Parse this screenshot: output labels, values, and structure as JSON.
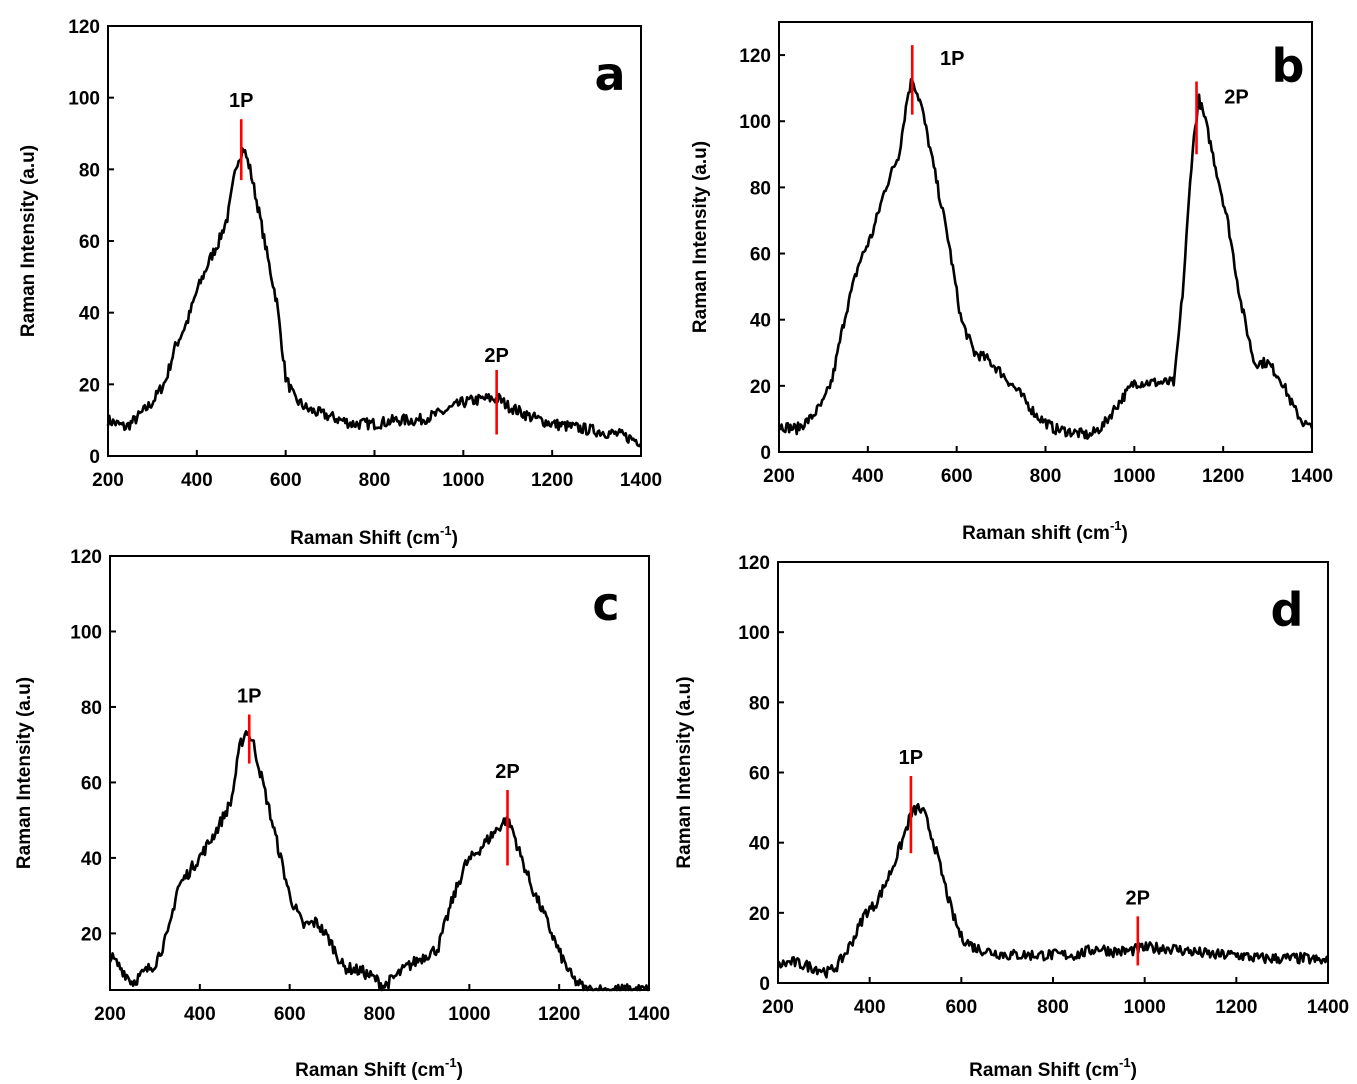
{
  "chart_data": [
    {
      "panel": "a",
      "type": "line",
      "xlabel": "Raman Shift (cm",
      "xlabel_sup": "-1",
      "xlabel_close": ")",
      "ylabel": "Raman Intensity (a.u)",
      "xlim": [
        200,
        1400
      ],
      "ylim": [
        0,
        120
      ],
      "xticks": [
        200,
        400,
        600,
        800,
        1000,
        1200,
        1400
      ],
      "yticks": [
        0,
        20,
        40,
        60,
        80,
        100,
        120
      ],
      "peaks": [
        {
          "label": "1P",
          "x": 500,
          "y_low": 77,
          "y_high": 94
        },
        {
          "label": "2P",
          "x": 1075,
          "y_low": 6,
          "y_high": 24
        }
      ],
      "series": [
        {
          "x": [
            200,
            240,
            260,
            300,
            330,
            350,
            380,
            400,
            430,
            450,
            470,
            490,
            505,
            520,
            540,
            560,
            580,
            600,
            620,
            650,
            700,
            750,
            800,
            850,
            900,
            950,
            1000,
            1050,
            1080,
            1100,
            1150,
            1200,
            1250,
            1300,
            1350,
            1400
          ],
          "y": [
            10,
            8,
            10,
            15,
            21,
            30,
            38,
            46,
            55,
            60,
            67,
            82,
            86,
            80,
            68,
            55,
            43,
            22,
            16,
            13,
            11,
            9,
            9,
            10,
            10,
            12,
            15,
            16,
            16,
            14,
            11,
            9,
            8,
            7,
            6,
            4
          ]
        }
      ]
    },
    {
      "panel": "b",
      "type": "line",
      "xlabel": "Raman shift (cm",
      "xlabel_sup": "-1",
      "xlabel_close": ")",
      "ylabel": "Raman Intensity (a.u)",
      "xlim": [
        200,
        1400
      ],
      "ylim": [
        0,
        130
      ],
      "xticks": [
        200,
        400,
        600,
        800,
        1000,
        1200,
        1400
      ],
      "yticks": [
        0,
        20,
        40,
        60,
        80,
        100,
        120
      ],
      "peaks": [
        {
          "label": "1P",
          "x": 500,
          "y_low": 102,
          "y_high": 123
        },
        {
          "label": "2P",
          "x": 1140,
          "y_low": 90,
          "y_high": 112
        }
      ],
      "series": [
        {
          "x": [
            200,
            240,
            270,
            300,
            320,
            350,
            380,
            410,
            440,
            470,
            490,
            500,
            520,
            550,
            580,
            610,
            640,
            670,
            700,
            740,
            780,
            820,
            860,
            900,
            930,
            960,
            1000,
            1050,
            1090,
            1110,
            1130,
            1145,
            1160,
            1180,
            1210,
            1240,
            1270,
            1300,
            1330,
            1360,
            1380,
            1400
          ],
          "y": [
            8,
            7,
            10,
            15,
            22,
            42,
            57,
            66,
            80,
            90,
            108,
            113,
            105,
            85,
            65,
            40,
            30,
            28,
            24,
            18,
            11,
            7,
            6,
            5,
            8,
            14,
            21,
            21,
            21,
            50,
            90,
            107,
            100,
            88,
            70,
            45,
            27,
            27,
            22,
            13,
            9,
            7
          ]
        }
      ]
    },
    {
      "panel": "c",
      "type": "line",
      "xlabel": "Raman Shift (cm",
      "xlabel_sup": "-1",
      "xlabel_close": ")",
      "ylabel": "Raman Intensity (a.u)",
      "xlim": [
        200,
        1400
      ],
      "ylim": [
        5,
        120
      ],
      "xticks": [
        200,
        400,
        600,
        800,
        1000,
        1200,
        1400
      ],
      "yticks": [
        20,
        40,
        60,
        80,
        100,
        120
      ],
      "peaks": [
        {
          "label": "1P",
          "x": 510,
          "y_low": 65,
          "y_high": 78
        },
        {
          "label": "2P",
          "x": 1085,
          "y_low": 38,
          "y_high": 58
        }
      ],
      "series": [
        {
          "x": [
            200,
            230,
            250,
            270,
            300,
            330,
            350,
            380,
            410,
            440,
            470,
            490,
            505,
            520,
            540,
            560,
            580,
            600,
            630,
            660,
            690,
            720,
            760,
            790,
            810,
            830,
            860,
            900,
            930,
            960,
            990,
            1020,
            1050,
            1080,
            1095,
            1110,
            1140,
            1170,
            1200,
            1230,
            1260,
            1300,
            1350,
            1400
          ],
          "y": [
            14,
            10,
            7,
            9,
            12,
            20,
            32,
            37,
            42,
            48,
            55,
            70,
            74,
            70,
            60,
            50,
            40,
            30,
            22,
            23,
            18,
            11,
            10,
            8,
            6,
            8,
            11,
            14,
            16,
            28,
            38,
            42,
            46,
            50,
            48,
            42,
            32,
            24,
            15,
            8,
            5,
            5,
            5,
            5
          ]
        }
      ]
    },
    {
      "panel": "d",
      "type": "line",
      "xlabel": "Raman Shift (cm",
      "xlabel_sup": "-1",
      "xlabel_close": ")",
      "ylabel": "Raman Intensity (a.u)",
      "xlim": [
        200,
        1400
      ],
      "ylim": [
        0,
        120
      ],
      "xticks": [
        200,
        400,
        600,
        800,
        1000,
        1200,
        1400
      ],
      "yticks": [
        0,
        20,
        40,
        60,
        80,
        100,
        120
      ],
      "peaks": [
        {
          "label": "1P",
          "x": 490,
          "y_low": 37,
          "y_high": 59
        },
        {
          "label": "2P",
          "x": 985,
          "y_low": 5,
          "y_high": 19
        }
      ],
      "series": [
        {
          "x": [
            200,
            230,
            260,
            290,
            310,
            330,
            350,
            370,
            390,
            410,
            430,
            450,
            470,
            490,
            505,
            520,
            540,
            560,
            580,
            600,
            630,
            660,
            700,
            750,
            800,
            850,
            900,
            930,
            960,
            1000,
            1050,
            1100,
            1150,
            1200,
            1250,
            1300,
            1350,
            1400
          ],
          "y": [
            5,
            6,
            5,
            4,
            3,
            5,
            9,
            14,
            20,
            22,
            27,
            33,
            40,
            48,
            50,
            48,
            40,
            30,
            20,
            13,
            10,
            9,
            8,
            8,
            8,
            8,
            10,
            9,
            9,
            10,
            10,
            9,
            8,
            8,
            7,
            7,
            7,
            6
          ]
        }
      ]
    }
  ]
}
